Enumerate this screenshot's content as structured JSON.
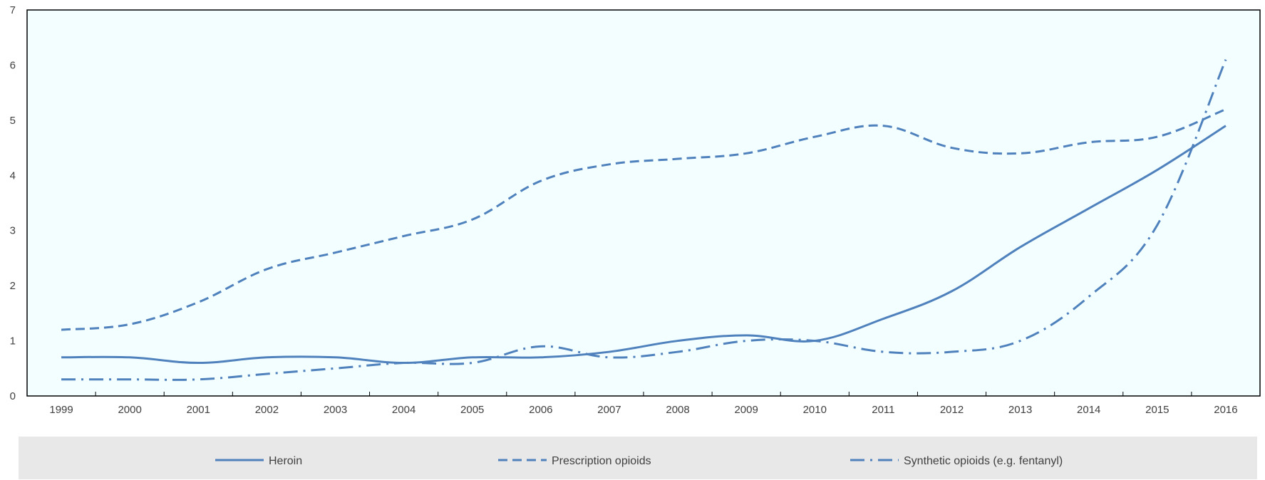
{
  "chart_data": {
    "type": "line",
    "categories": [
      "1999",
      "2000",
      "2001",
      "2002",
      "2003",
      "2004",
      "2005",
      "2006",
      "2007",
      "2008",
      "2009",
      "2010",
      "2011",
      "2012",
      "2013",
      "2014",
      "2015",
      "2016"
    ],
    "ylim": [
      0,
      7
    ],
    "yticks": [
      "0",
      "1",
      "2",
      "3",
      "4",
      "5",
      "6",
      "7"
    ],
    "grid": false,
    "legend_position": "bottom",
    "series": [
      {
        "name": "Heroin",
        "style": "solid",
        "values": [
          0.7,
          0.7,
          0.6,
          0.7,
          0.7,
          0.6,
          0.7,
          0.7,
          0.8,
          1.0,
          1.1,
          1.0,
          1.4,
          1.9,
          2.7,
          3.4,
          4.1,
          4.9
        ]
      },
      {
        "name": "Prescription opioids",
        "style": "dashed",
        "values": [
          1.2,
          1.3,
          1.7,
          2.3,
          2.6,
          2.9,
          3.2,
          3.9,
          4.2,
          4.3,
          4.4,
          4.7,
          4.9,
          4.5,
          4.4,
          4.6,
          4.7,
          5.2
        ]
      },
      {
        "name": "Synthetic opioids (e.g. fentanyl)",
        "style": "dashdot",
        "values": [
          0.3,
          0.3,
          0.3,
          0.4,
          0.5,
          0.6,
          0.6,
          0.9,
          0.7,
          0.8,
          1.0,
          1.0,
          0.8,
          0.8,
          1.0,
          1.8,
          3.1,
          6.1
        ]
      }
    ]
  },
  "colors": {
    "line": "#4f81bd",
    "plot_bg": "#f2feff",
    "legend_bg": "#e8e8e8",
    "axis": "#000000"
  }
}
